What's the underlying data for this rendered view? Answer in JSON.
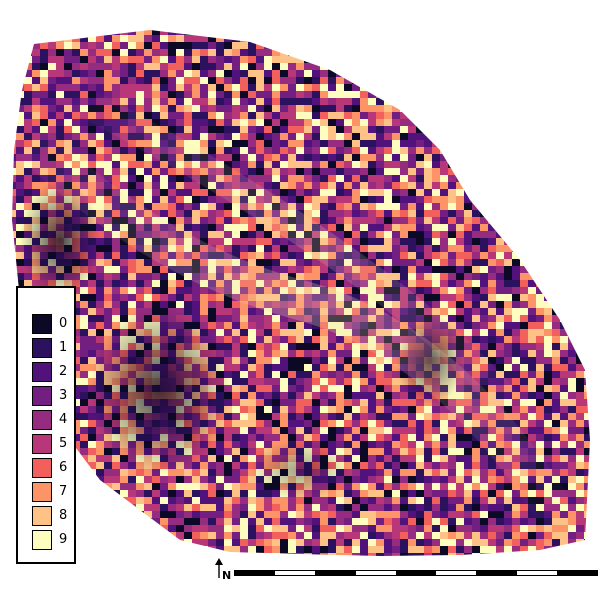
{
  "map": {
    "colormap": "magma",
    "legend": {
      "items": [
        {
          "label": "0",
          "color": "#0c0927"
        },
        {
          "label": "1",
          "color": "#2c115f"
        },
        {
          "label": "2",
          "color": "#51127c"
        },
        {
          "label": "3",
          "color": "#721f81"
        },
        {
          "label": "4",
          "color": "#962c80"
        },
        {
          "label": "5",
          "color": "#b73779"
        },
        {
          "label": "6",
          "color": "#f1605d"
        },
        {
          "label": "7",
          "color": "#fd9467"
        },
        {
          "label": "8",
          "color": "#fec287"
        },
        {
          "label": "9",
          "color": "#fcfdbf"
        }
      ]
    },
    "north_arrow": {
      "label": "N",
      "icon": "north-arrow-icon"
    },
    "scale_bar": {
      "segments": 9,
      "colors": [
        "#000000",
        "#ffffff"
      ]
    },
    "hillshade_color": "#b89a6e"
  }
}
